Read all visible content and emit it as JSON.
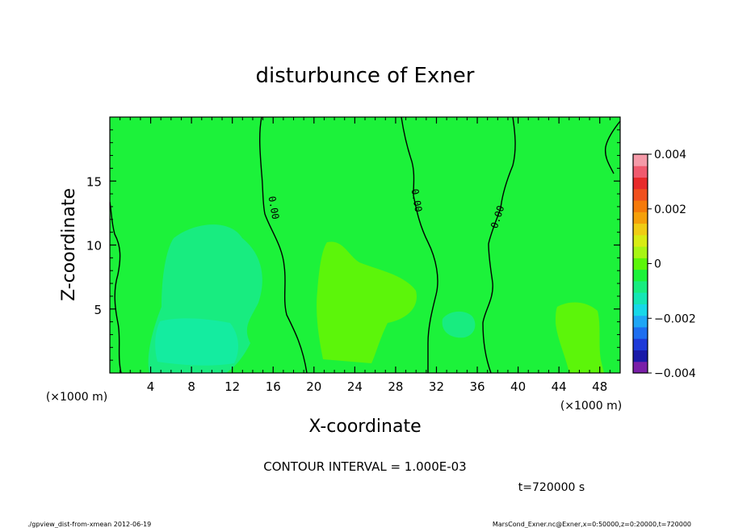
{
  "chart_data": {
    "type": "heatmap",
    "title": "disturbunce of Exner",
    "xlabel": "X-coordinate",
    "ylabel": "Z-coordinate",
    "x_unit_left": "(×1000 m)",
    "x_unit_right": "(×1000 m)",
    "xlim": [
      0,
      50
    ],
    "ylim": [
      0,
      20
    ],
    "xticks": [
      4,
      8,
      12,
      16,
      20,
      24,
      28,
      32,
      36,
      40,
      44,
      48
    ],
    "yticks": [
      5,
      10,
      15
    ],
    "colorbar": {
      "range": [
        -0.004,
        0.004
      ],
      "tick_values": [
        0.004,
        0.002,
        0,
        -0.002,
        -0.004
      ],
      "tick_labels": [
        "0.004",
        "0.002",
        "0",
        "−0.002",
        "−0.004"
      ],
      "colors": [
        "#7a1fa8",
        "#1a1aa8",
        "#1e3ad8",
        "#1e6ef0",
        "#1fa6f5",
        "#17d8e8",
        "#14e6b4",
        "#18ec80",
        "#1cf23a",
        "#5cf50a",
        "#a8f514",
        "#d8ec14",
        "#f0cc14",
        "#f5a00a",
        "#f57a0a",
        "#f0501e",
        "#e82a2a",
        "#f05a6e",
        "#f59aa8"
      ]
    },
    "contour_label": "0.00",
    "contour_interval_text": "CONTOUR INTERVAL = 1.000E-03",
    "time_text": "t=720000 s",
    "footer_left": "./gpview_dist-from-xmean 2012-06-19",
    "footer_right": "MarsCond_Exner.nc@Exner,x=0:50000,z=0:20000,t=720000",
    "background_value": 0.0,
    "background_color": "#1cf23a",
    "regions": [
      {
        "name": "negative-anomaly-west",
        "value": -0.0008,
        "color": "#18ec80"
      },
      {
        "name": "negative-anomaly-core",
        "value": -0.0011,
        "color": "#14eca0"
      },
      {
        "name": "positive-anomaly-center",
        "value": 0.0008,
        "color": "#5cf50a"
      },
      {
        "name": "negative-anomaly-small",
        "value": -0.0008,
        "color": "#18ec80"
      },
      {
        "name": "positive-anomaly-east",
        "value": 0.0008,
        "color": "#5cf50a"
      }
    ]
  }
}
